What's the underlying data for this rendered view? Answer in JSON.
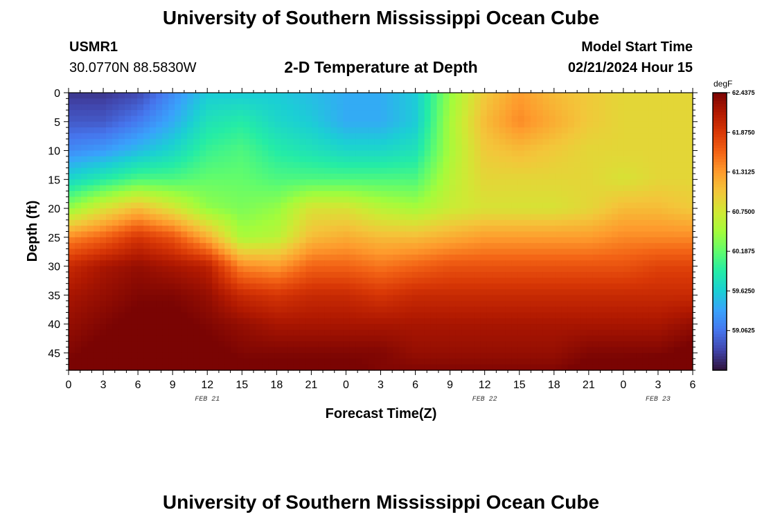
{
  "page": {
    "title": "University of Southern Mississippi Ocean Cube",
    "station_id": "USMR1",
    "station_coords": "30.0770N  88.5830W",
    "subtitle": "2-D Temperature at Depth",
    "model_start_label": "Model Start Time",
    "model_start_value": "02/21/2024 Hour 15",
    "bottom_title": "University of Southern Mississippi Ocean Cube"
  },
  "chart_data": {
    "type": "heatmap",
    "title": "2-D Temperature at Depth",
    "xlabel": "Forecast Time(Z)",
    "ylabel": "Depth (ft)",
    "x_tick_labels": [
      "0",
      "3",
      "6",
      "9",
      "12",
      "15",
      "18",
      "21",
      "0",
      "3",
      "6",
      "9",
      "12",
      "15",
      "18",
      "21",
      "0",
      "3",
      "6"
    ],
    "x_range_hours": [
      0,
      54
    ],
    "date_labels": [
      {
        "label": "FEB 21",
        "hour": 12
      },
      {
        "label": "FEB 22",
        "hour": 36
      },
      {
        "label": "FEB 23",
        "hour": 51
      }
    ],
    "y_tick_labels": [
      "0",
      "5",
      "10",
      "15",
      "20",
      "25",
      "30",
      "35",
      "40",
      "45"
    ],
    "y_range": [
      0,
      48
    ],
    "y_inverted": true,
    "colorbar": {
      "unit": "degF",
      "min": 58.5,
      "max": 62.4375,
      "tick_labels": [
        "62.4375",
        "61.8750",
        "61.3125",
        "60.7500",
        "60.1875",
        "59.6250",
        "59.0625"
      ],
      "tick_values": [
        62.4375,
        61.875,
        61.3125,
        60.75,
        60.1875,
        59.625,
        59.0625
      ]
    },
    "colors": [
      "#30123b",
      "#4145ab",
      "#4675ed",
      "#39a2fc",
      "#1bcfd4",
      "#24eca6",
      "#61fc6c",
      "#a4fc3b",
      "#d1e834",
      "#f3c63a",
      "#fe9b2d",
      "#f36315",
      "#d93806",
      "#b11901",
      "#7a0403"
    ],
    "hours": [
      0,
      3,
      6,
      9,
      12,
      15,
      18,
      21,
      24,
      27,
      30,
      33,
      36,
      39,
      42,
      45,
      48,
      51,
      54
    ],
    "depths": [
      0,
      5,
      10,
      15,
      20,
      25,
      30,
      35,
      40,
      45,
      48
    ],
    "values": [
      [
        58.7,
        58.7,
        58.8,
        59.2,
        59.6,
        59.6,
        59.6,
        59.5,
        59.4,
        59.4,
        59.6,
        60.4,
        61.0,
        61.3,
        61.1,
        61.0,
        60.9,
        60.9,
        60.9
      ],
      [
        58.9,
        58.9,
        59.1,
        59.4,
        59.8,
        59.9,
        59.7,
        59.6,
        59.4,
        59.4,
        59.6,
        60.5,
        61.1,
        61.4,
        61.2,
        61.0,
        60.9,
        60.9,
        60.9
      ],
      [
        59.2,
        59.3,
        59.5,
        59.7,
        60.0,
        60.1,
        59.9,
        59.8,
        59.7,
        59.7,
        59.8,
        60.5,
        61.0,
        61.1,
        61.0,
        60.9,
        60.9,
        60.9,
        60.9
      ],
      [
        59.7,
        59.9,
        60.1,
        60.1,
        60.2,
        60.2,
        60.1,
        60.1,
        60.1,
        60.1,
        60.1,
        60.6,
        60.9,
        60.9,
        60.9,
        60.9,
        60.8,
        60.9,
        60.9
      ],
      [
        60.4,
        60.8,
        61.1,
        60.8,
        60.4,
        60.3,
        60.4,
        60.8,
        60.8,
        60.6,
        60.5,
        60.7,
        60.8,
        60.8,
        60.8,
        60.9,
        61.1,
        61.1,
        61.0
      ],
      [
        61.4,
        61.6,
        61.9,
        61.7,
        61.2,
        60.5,
        60.6,
        61.1,
        61.2,
        61.1,
        61.1,
        61.2,
        61.3,
        61.3,
        61.3,
        61.3,
        61.4,
        61.4,
        61.4
      ],
      [
        62.0,
        62.2,
        62.3,
        62.2,
        62.1,
        61.4,
        61.3,
        61.6,
        61.6,
        61.5,
        61.6,
        61.7,
        61.7,
        61.7,
        61.7,
        61.7,
        61.7,
        61.8,
        61.8
      ],
      [
        62.2,
        62.3,
        62.4,
        62.4,
        62.3,
        62.0,
        61.9,
        62.0,
        62.0,
        61.9,
        62.0,
        62.0,
        62.0,
        62.0,
        62.0,
        62.0,
        62.0,
        62.0,
        62.0
      ],
      [
        62.3,
        62.4,
        62.5,
        62.5,
        62.4,
        62.3,
        62.2,
        62.2,
        62.2,
        62.2,
        62.2,
        62.2,
        62.2,
        62.2,
        62.2,
        62.2,
        62.2,
        62.2,
        62.3
      ],
      [
        62.4,
        62.5,
        62.6,
        62.6,
        62.5,
        62.4,
        62.4,
        62.4,
        62.4,
        62.4,
        62.3,
        62.3,
        62.3,
        62.3,
        62.3,
        62.4,
        62.4,
        62.4,
        62.5
      ],
      [
        62.5,
        62.6,
        62.7,
        62.7,
        62.6,
        62.5,
        62.5,
        62.5,
        62.5,
        62.4,
        62.4,
        62.4,
        62.4,
        62.4,
        62.4,
        62.5,
        62.5,
        62.6,
        62.8
      ]
    ]
  }
}
